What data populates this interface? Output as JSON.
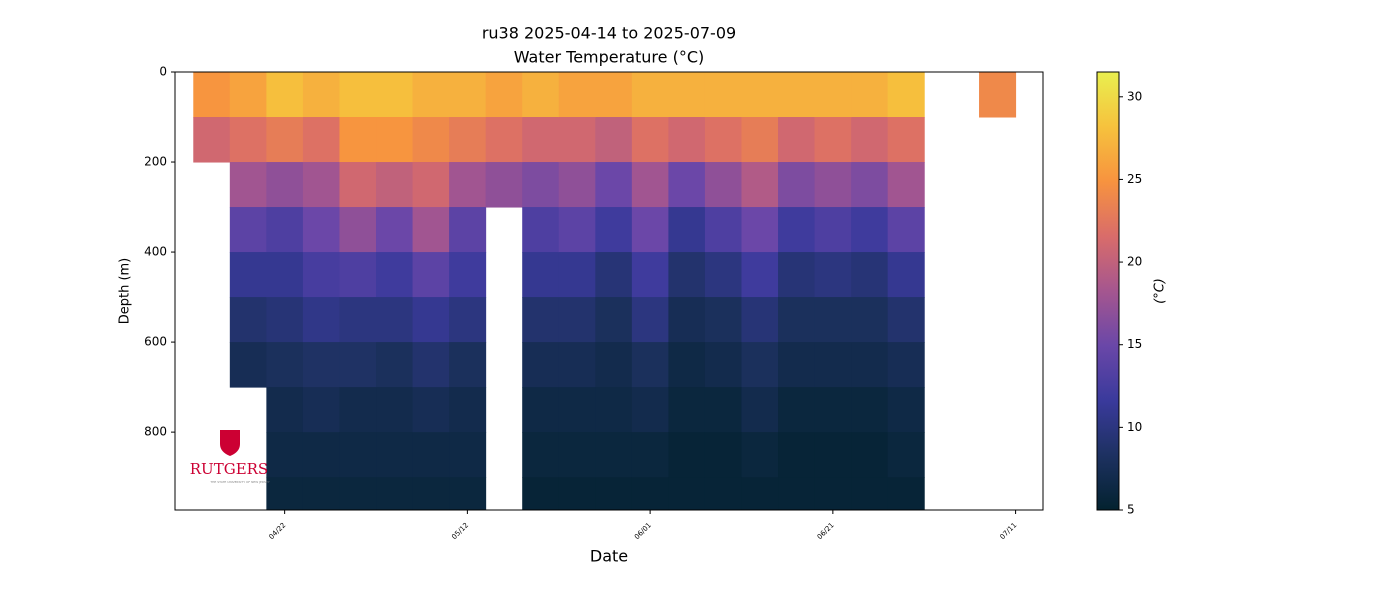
{
  "chart_data": {
    "type": "section",
    "title": "ru38 2025-04-14 to 2025-07-09",
    "subtitle": "Water Temperature (°C)",
    "x_label": "Date",
    "y_label": "Depth (m)",
    "colorbar_label": "(°C)",
    "logo": "RUTGERS",
    "logo_tagline": "THE STATE UNIVERSITY OF NEW JERSEY",
    "x": [
      "04/14",
      "04/18",
      "04/22",
      "04/26",
      "04/30",
      "05/04",
      "05/08",
      "05/12",
      "05/16",
      "05/20",
      "05/24",
      "05/28",
      "06/01",
      "06/05",
      "06/09",
      "06/13",
      "06/17",
      "06/21",
      "06/25",
      "06/29",
      "07/09"
    ],
    "depths": [
      50,
      150,
      250,
      350,
      450,
      550,
      650,
      750,
      850,
      950
    ],
    "values": [
      [
        25,
        21,
        null,
        null,
        null,
        null,
        null,
        null,
        null,
        null
      ],
      [
        26,
        22,
        18,
        14,
        11,
        9,
        7.5,
        null,
        null,
        null
      ],
      [
        28,
        23,
        17,
        13,
        11,
        9.5,
        8,
        7,
        6.5,
        6
      ],
      [
        27,
        22,
        18,
        15,
        12.5,
        10.5,
        8.5,
        7.5,
        6.5,
        6
      ],
      [
        28,
        25,
        21,
        17,
        13,
        10,
        8.5,
        7,
        6.5,
        6
      ],
      [
        28,
        25,
        20,
        15,
        12,
        10,
        8,
        7,
        6.5,
        6
      ],
      [
        27,
        24,
        21,
        18,
        14,
        11,
        9,
        7.5,
        6.5,
        6
      ],
      [
        27,
        23,
        18,
        14,
        12,
        10,
        8,
        7,
        6.5,
        6
      ],
      [
        26,
        22,
        17,
        null,
        null,
        null,
        null,
        null,
        null,
        null
      ],
      [
        27,
        21,
        16,
        13,
        11,
        9,
        7.5,
        6.5,
        6,
        5.5
      ],
      [
        26,
        21,
        17,
        14,
        11,
        9,
        7.5,
        6.5,
        6,
        5.5
      ],
      [
        26,
        20,
        15,
        12,
        9.5,
        8,
        7,
        6.5,
        6,
        5.5
      ],
      [
        27,
        22,
        18,
        15,
        12,
        10,
        8,
        7,
        6,
        5.5
      ],
      [
        27,
        21,
        15,
        11,
        9,
        7.5,
        6.5,
        6,
        5.5,
        5.5
      ],
      [
        27,
        22,
        17,
        13,
        10,
        8,
        7,
        6,
        5.5,
        5.5
      ],
      [
        27,
        23,
        19,
        15,
        12,
        9.5,
        8,
        7,
        6,
        5.5
      ],
      [
        27,
        21,
        16,
        12,
        9.5,
        8,
        7,
        6,
        5.5,
        5.5
      ],
      [
        27,
        22,
        17,
        13,
        10,
        8,
        7,
        6,
        5.5,
        5.5
      ],
      [
        27,
        21,
        16,
        12,
        9.5,
        8,
        7,
        6,
        5.5,
        5.5
      ],
      [
        28,
        22,
        18,
        14,
        11,
        9,
        7.5,
        6.5,
        6,
        5.5
      ],
      [
        24,
        null,
        null,
        null,
        null,
        null,
        null,
        null,
        null,
        null
      ]
    ],
    "xlim": [
      "04/10",
      "07/14"
    ],
    "xticks": [
      "04/22",
      "05/12",
      "06/01",
      "06/21",
      "07/11"
    ],
    "ylim": [
      973,
      0
    ],
    "yticks": [
      0,
      200,
      400,
      600,
      800
    ],
    "clim": [
      5,
      31.5
    ],
    "cticks": [
      5,
      10,
      15,
      20,
      25,
      30
    ],
    "colormap": [
      "#03222f",
      "#1d3161",
      "#3a3a9c",
      "#6a47a8",
      "#a5568f",
      "#d96c6a",
      "#f7933f",
      "#f6c23d",
      "#e9ef4f"
    ]
  }
}
